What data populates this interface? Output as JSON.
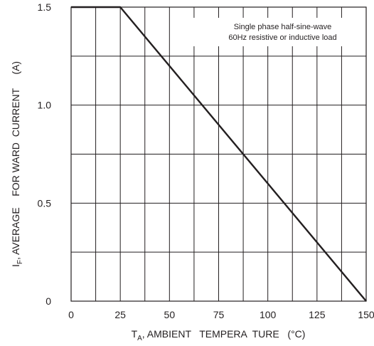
{
  "chart_data": {
    "type": "line",
    "title": "",
    "xlabel": {
      "main": "T",
      "sub": "A",
      "rest": ", AMBIENT   TEMPERA  TURE   (°C)"
    },
    "ylabel": {
      "main": "I",
      "sub": "F",
      "rest": ", AVERAGE    FOR WARD  CURRENT     (A)"
    },
    "xlim": [
      0,
      150
    ],
    "ylim": [
      0,
      1.5
    ],
    "x_ticks": [
      0,
      25,
      50,
      75,
      100,
      125,
      150
    ],
    "x_tick_labels": [
      "0",
      "25",
      "50",
      "75",
      "100",
      "125",
      "150"
    ],
    "y_tick_labels": [
      {
        "value": 0,
        "label": "0"
      },
      {
        "value": 0.5,
        "label": "0.5"
      },
      {
        "value": 1.0,
        "label": "1.0"
      },
      {
        "value": 1.5,
        "label": "1.5"
      }
    ],
    "x_grid": [
      0,
      12.5,
      25,
      37.5,
      50,
      62.5,
      75,
      87.5,
      100,
      112.5,
      125,
      137.5,
      150
    ],
    "y_grid": [
      0,
      0.25,
      0.5,
      0.75,
      1.0,
      1.25,
      1.5
    ],
    "grid": true,
    "legend": "none",
    "series": [
      {
        "color": "#231f20",
        "x": [
          0,
          25,
          150
        ],
        "y": [
          1.5,
          1.5,
          0
        ]
      }
    ],
    "annotation": {
      "lines": [
        "Single  phase  half-sine-wave",
        "60Hz  resistive  or inductive load"
      ],
      "placement": "top-right"
    }
  }
}
